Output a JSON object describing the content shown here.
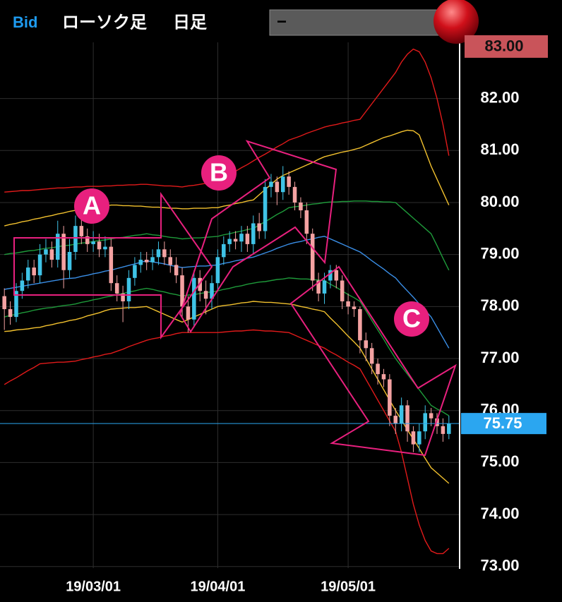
{
  "header": {
    "feed": "Bid",
    "chart_type": "ローソク足",
    "period": "日足",
    "selector": "−"
  },
  "chart_data": {
    "type": "candlestick",
    "categories": [
      null,
      null,
      null,
      null,
      null,
      null,
      null,
      null,
      null,
      null,
      null,
      null,
      null,
      null,
      null,
      "19/03/01",
      null,
      null,
      null,
      null,
      null,
      null,
      null,
      null,
      null,
      null,
      null,
      null,
      null,
      null,
      null,
      null,
      null,
      null,
      null,
      null,
      "19/04/01",
      null,
      null,
      null,
      null,
      null,
      null,
      null,
      null,
      null,
      null,
      null,
      null,
      null,
      null,
      null,
      null,
      null,
      null,
      null,
      null,
      null,
      "19/05/01",
      null,
      null,
      null,
      null,
      null,
      null,
      null,
      null,
      null,
      null,
      null,
      null,
      null,
      null,
      null,
      null,
      null
    ],
    "open": [
      78.2,
      77.95,
      77.8,
      78.3,
      78.5,
      78.75,
      78.6,
      79.0,
      79.1,
      78.9,
      79.4,
      78.7,
      79.05,
      79.55,
      79.35,
      79.2,
      79.25,
      79.1,
      79.15,
      78.45,
      78.25,
      78.1,
      78.55,
      78.8,
      78.9,
      78.85,
      78.95,
      79.1,
      78.95,
      78.8,
      78.6,
      78.0,
      77.75,
      78.55,
      78.3,
      78.15,
      78.45,
      78.95,
      79.2,
      79.3,
      79.25,
      79.4,
      79.2,
      79.6,
      79.45,
      80.3,
      80.4,
      80.2,
      80.5,
      80.3,
      80.0,
      79.85,
      79.4,
      78.5,
      78.25,
      78.5,
      78.7,
      78.5,
      78.1,
      78.0,
      77.95,
      77.35,
      77.2,
      76.9,
      76.7,
      76.6,
      75.9,
      75.75,
      76.1,
      75.6,
      75.35,
      75.6,
      75.95,
      75.85,
      75.7,
      75.55
    ],
    "high": [
      78.35,
      78.1,
      78.45,
      78.65,
      78.9,
      78.9,
      79.2,
      79.3,
      79.25,
      79.65,
      79.55,
      79.3,
      79.75,
      79.7,
      79.5,
      79.45,
      79.4,
      79.35,
      79.3,
      78.6,
      78.4,
      78.7,
      78.95,
      79.05,
      79.05,
      79.1,
      79.25,
      79.25,
      79.1,
      78.95,
      78.75,
      78.2,
      78.7,
      78.7,
      78.5,
      78.6,
      79.1,
      79.35,
      79.45,
      79.45,
      79.55,
      79.55,
      79.75,
      79.8,
      80.45,
      80.55,
      80.5,
      80.7,
      80.6,
      80.4,
      80.1,
      80.0,
      79.5,
      78.65,
      78.65,
      78.8,
      78.8,
      78.6,
      78.25,
      78.1,
      78.0,
      77.5,
      77.3,
      77.0,
      76.8,
      76.7,
      76.05,
      76.25,
      76.2,
      75.7,
      75.75,
      76.1,
      76.05,
      75.95,
      75.85,
      75.9
    ],
    "low": [
      77.55,
      77.65,
      77.7,
      78.15,
      78.35,
      78.45,
      78.45,
      78.85,
      78.75,
      78.75,
      78.35,
      78.55,
      78.9,
      79.2,
      79.05,
      79.05,
      78.95,
      78.95,
      78.3,
      78.1,
      77.7,
      77.95,
      78.4,
      78.65,
      78.7,
      78.7,
      78.8,
      78.8,
      78.65,
      78.45,
      77.8,
      77.5,
      77.6,
      78.1,
      77.85,
      77.95,
      78.3,
      78.8,
      79.05,
      79.1,
      79.05,
      79.05,
      79.0,
      79.3,
      79.3,
      80.1,
      79.95,
      80.05,
      80.15,
      79.85,
      79.7,
      79.2,
      78.3,
      78.1,
      78.05,
      78.35,
      78.35,
      77.95,
      77.85,
      77.8,
      77.1,
      76.95,
      76.7,
      76.5,
      76.45,
      75.7,
      75.55,
      75.6,
      75.4,
      75.2,
      75.2,
      75.45,
      75.7,
      75.55,
      75.4,
      75.45
    ],
    "close": [
      77.95,
      77.8,
      78.3,
      78.5,
      78.75,
      78.6,
      79.0,
      79.1,
      78.9,
      79.4,
      78.7,
      79.05,
      79.55,
      79.35,
      79.2,
      79.25,
      79.1,
      79.15,
      78.45,
      78.25,
      78.1,
      78.55,
      78.8,
      78.9,
      78.85,
      78.95,
      79.1,
      78.95,
      78.8,
      78.6,
      78.0,
      77.75,
      78.55,
      78.3,
      78.15,
      78.45,
      78.95,
      79.2,
      79.3,
      79.25,
      79.4,
      79.2,
      79.6,
      79.45,
      80.3,
      80.4,
      80.2,
      80.5,
      80.3,
      80.0,
      79.85,
      79.4,
      78.5,
      78.25,
      78.5,
      78.7,
      78.5,
      78.1,
      78.0,
      77.95,
      77.35,
      77.2,
      76.9,
      76.7,
      76.6,
      75.9,
      75.75,
      76.1,
      75.6,
      75.35,
      75.6,
      75.95,
      75.85,
      75.7,
      75.55,
      75.75
    ],
    "up_color": "#3fc3e6",
    "down_color": "#f4a2a2",
    "series": [
      {
        "color": "#e11a1a",
        "values": [
          80.2,
          80.21,
          80.22,
          80.23,
          80.23,
          80.24,
          80.25,
          80.26,
          80.27,
          80.28,
          80.28,
          80.29,
          80.3,
          80.3,
          80.31,
          80.31,
          80.31,
          80.32,
          80.32,
          80.33,
          80.33,
          80.34,
          80.34,
          80.35,
          80.35,
          80.34,
          80.33,
          80.32,
          80.32,
          80.31,
          80.3,
          80.32,
          80.33,
          80.35,
          80.37,
          80.38,
          80.4,
          80.47,
          80.53,
          80.6,
          80.67,
          80.73,
          80.8,
          80.87,
          80.93,
          81.0,
          81.07,
          81.13,
          81.2,
          81.24,
          81.28,
          81.33,
          81.37,
          81.41,
          81.45,
          81.48,
          81.5,
          81.53,
          81.55,
          81.58,
          81.6,
          81.75,
          81.9,
          82.05,
          82.2,
          82.35,
          82.5,
          82.7,
          82.85,
          82.95,
          82.9,
          82.7,
          82.4,
          82.0,
          81.5,
          80.9
        ]
      },
      {
        "color": "#f2c12e",
        "values": [
          79.55,
          79.58,
          79.6,
          79.63,
          79.65,
          79.68,
          79.7,
          79.73,
          79.75,
          79.78,
          79.8,
          79.83,
          79.85,
          79.87,
          79.88,
          79.9,
          79.92,
          79.93,
          79.95,
          79.95,
          79.94,
          79.94,
          79.93,
          79.93,
          79.92,
          79.91,
          79.91,
          79.9,
          79.89,
          79.89,
          79.88,
          79.88,
          79.89,
          79.89,
          79.89,
          79.9,
          79.9,
          79.93,
          79.95,
          79.98,
          80.0,
          80.03,
          80.05,
          80.15,
          80.25,
          80.35,
          80.45,
          80.52,
          80.57,
          80.62,
          80.67,
          80.72,
          80.77,
          80.83,
          80.88,
          80.91,
          80.94,
          80.97,
          80.99,
          81.02,
          81.05,
          81.1,
          81.15,
          81.2,
          81.25,
          81.28,
          81.32,
          81.36,
          81.39,
          81.38,
          81.3,
          81.0,
          80.7,
          80.45,
          80.2,
          79.95
        ]
      },
      {
        "color": "#1e9a3a",
        "values": [
          79.0,
          79.02,
          79.03,
          79.05,
          79.07,
          79.08,
          79.1,
          79.12,
          79.13,
          79.15,
          79.17,
          79.18,
          79.2,
          79.22,
          79.23,
          79.25,
          79.27,
          79.28,
          79.3,
          79.32,
          79.33,
          79.35,
          79.37,
          79.38,
          79.4,
          79.38,
          79.37,
          79.35,
          79.33,
          79.32,
          79.3,
          79.31,
          79.32,
          79.32,
          79.33,
          79.34,
          79.35,
          79.38,
          79.4,
          79.43,
          79.45,
          79.48,
          79.5,
          79.57,
          79.63,
          79.7,
          79.77,
          79.83,
          79.9,
          79.92,
          79.93,
          79.95,
          79.97,
          79.98,
          80.0,
          80.01,
          80.01,
          80.02,
          80.02,
          80.03,
          80.03,
          80.03,
          80.02,
          80.02,
          80.01,
          80.01,
          80.0,
          79.9,
          79.8,
          79.7,
          79.6,
          79.5,
          79.4,
          79.17,
          78.93,
          78.7
        ]
      },
      {
        "color": "#3a8ee6",
        "values": [
          78.33,
          78.35,
          78.37,
          78.39,
          78.41,
          78.43,
          78.45,
          78.47,
          78.49,
          78.51,
          78.53,
          78.54,
          78.55,
          78.58,
          78.6,
          78.63,
          78.65,
          78.68,
          78.7,
          78.73,
          78.76,
          78.79,
          78.82,
          78.85,
          78.88,
          78.86,
          78.84,
          78.82,
          78.79,
          78.77,
          78.75,
          78.76,
          78.77,
          78.78,
          78.78,
          78.79,
          78.8,
          78.83,
          78.85,
          78.88,
          78.9,
          78.93,
          78.95,
          78.99,
          79.03,
          79.07,
          79.12,
          79.16,
          79.2,
          79.23,
          79.25,
          79.28,
          79.3,
          79.33,
          79.35,
          79.3,
          79.25,
          79.2,
          79.15,
          79.1,
          79.05,
          78.97,
          78.88,
          78.8,
          78.72,
          78.63,
          78.55,
          78.42,
          78.3,
          78.18,
          78.05,
          77.93,
          77.8,
          77.6,
          77.4,
          77.2
        ]
      },
      {
        "color": "#1e9a3a",
        "values": [
          77.8,
          77.83,
          77.85,
          77.88,
          77.9,
          77.93,
          77.95,
          77.97,
          77.98,
          78.0,
          78.02,
          78.03,
          78.05,
          78.08,
          78.1,
          78.13,
          78.15,
          78.18,
          78.2,
          78.23,
          78.25,
          78.28,
          78.3,
          78.33,
          78.35,
          78.33,
          78.3,
          78.28,
          78.25,
          78.23,
          78.2,
          78.22,
          78.23,
          78.25,
          78.27,
          78.28,
          78.3,
          78.33,
          78.35,
          78.38,
          78.4,
          78.43,
          78.45,
          78.47,
          78.48,
          78.5,
          78.52,
          78.53,
          78.55,
          78.54,
          78.53,
          78.53,
          78.52,
          78.51,
          78.5,
          78.43,
          78.37,
          78.3,
          78.23,
          78.17,
          78.1,
          77.92,
          77.73,
          77.55,
          77.37,
          77.18,
          77.0,
          76.85,
          76.7,
          76.55,
          76.4,
          76.25,
          76.1,
          76.03,
          75.97,
          75.9
        ]
      },
      {
        "color": "#f2c12e",
        "values": [
          77.52,
          77.53,
          77.55,
          77.56,
          77.57,
          77.59,
          77.6,
          77.63,
          77.65,
          77.68,
          77.7,
          77.73,
          77.75,
          77.78,
          77.82,
          77.85,
          77.88,
          77.92,
          77.95,
          77.96,
          77.97,
          77.98,
          77.98,
          77.99,
          78.0,
          77.95,
          77.9,
          77.85,
          77.8,
          77.75,
          77.7,
          77.75,
          77.8,
          77.85,
          77.9,
          77.95,
          78.0,
          78.02,
          78.03,
          78.05,
          78.07,
          78.08,
          78.1,
          78.09,
          78.08,
          78.08,
          78.07,
          78.06,
          78.05,
          78.03,
          78.0,
          77.98,
          77.95,
          77.93,
          77.9,
          77.78,
          77.67,
          77.55,
          77.43,
          77.32,
          77.2,
          77.0,
          76.8,
          76.6,
          76.4,
          76.2,
          76.0,
          75.82,
          75.63,
          75.45,
          75.27,
          75.08,
          74.9,
          74.8,
          74.7,
          74.6
        ]
      },
      {
        "color": "#e11a1a",
        "values": [
          76.5,
          76.57,
          76.63,
          76.7,
          76.77,
          76.83,
          76.9,
          76.91,
          76.92,
          76.93,
          76.93,
          76.94,
          76.95,
          76.98,
          77.0,
          77.03,
          77.05,
          77.08,
          77.1,
          77.14,
          77.18,
          77.23,
          77.27,
          77.31,
          77.35,
          77.38,
          77.4,
          77.43,
          77.45,
          77.48,
          77.5,
          77.5,
          77.5,
          77.5,
          77.5,
          77.5,
          77.5,
          77.51,
          77.52,
          77.53,
          77.53,
          77.54,
          77.55,
          77.54,
          77.53,
          77.53,
          77.52,
          77.51,
          77.5,
          77.45,
          77.4,
          77.35,
          77.3,
          77.25,
          77.2,
          77.13,
          77.07,
          77.0,
          76.93,
          76.87,
          76.8,
          76.6,
          76.4,
          76.2,
          76.0,
          75.8,
          75.6,
          75.2,
          74.7,
          74.2,
          73.8,
          73.5,
          73.3,
          73.25,
          73.25,
          73.35
        ]
      }
    ],
    "ylim": [
      72.97,
      83.08
    ],
    "yticks": [
      {
        "value": 73,
        "label": "73.00"
      },
      {
        "value": 74,
        "label": "74.00"
      },
      {
        "value": 75,
        "label": "75.00"
      },
      {
        "value": 76,
        "label": "76.00"
      },
      {
        "value": 77,
        "label": "77.00"
      },
      {
        "value": 78,
        "label": "78.00"
      },
      {
        "value": 79,
        "label": "79.00"
      },
      {
        "value": 80,
        "label": "80.00"
      },
      {
        "value": 81,
        "label": "81.00"
      },
      {
        "value": 82,
        "label": "82.00"
      }
    ],
    "grid": true,
    "high_price": {
      "value": 83,
      "label": "83.00",
      "color": "#c9545a"
    },
    "last_price": {
      "value": 75.75,
      "color": "#2ba6f0"
    },
    "annotations": [
      "A",
      "B",
      "C"
    ],
    "annotation_color": "#e8207e"
  }
}
